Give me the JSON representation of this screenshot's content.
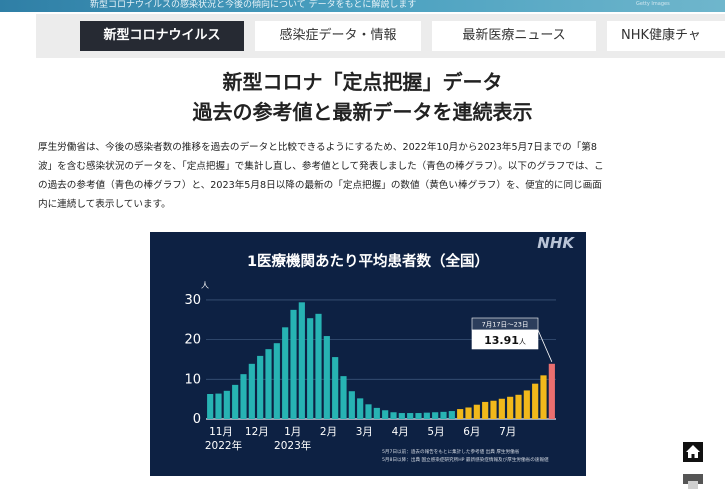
{
  "banner": {
    "text": "新型コロナウイルスの感染状況と今後の傾向について データをもとに解説します",
    "credit": "Getty Images"
  },
  "nav": {
    "tabs": [
      {
        "label": "新型コロナウイルス",
        "active": true
      },
      {
        "label": "感染症データ・情報",
        "active": false
      },
      {
        "label": "最新医療ニュース",
        "active": false
      },
      {
        "label": "NHK健康チャ",
        "active": false
      }
    ]
  },
  "article": {
    "title_line1": "新型コロナ「定点把握」データ",
    "title_line2": "過去の参考値と最新データを連続表示",
    "paragraph_lines": [
      "厚生労働省は、今後の感染者数の推移を過去のデータと比較できるようにするため、2022年10月から2023年5月7日までの「第8",
      "波」を含む感染状況のデータを、「定点把握」で集計し直し、参考値として発表しました（青色の棒グラフ）。以下のグラフでは、こ",
      "の過去の参考値（青色の棒グラフ）と、2023年5月8日以降の最新の「定点把握」の数値（黄色い棒グラフ）を、便宜的に同じ画面",
      "内に連続して表示しています。"
    ]
  },
  "chart_data": {
    "type": "bar",
    "title": "1医療機関あたり平均患者数（全国）",
    "brand": "NHK",
    "ylabel": "人",
    "ylim": [
      0,
      32
    ],
    "yticks": [
      0,
      10,
      20,
      30
    ],
    "x_tick_labels": [
      "11月",
      "12月",
      "1月",
      "2月",
      "3月",
      "4月",
      "5月",
      "6月",
      "7月"
    ],
    "year_labels": [
      "2022年",
      "2023年"
    ],
    "series": [
      {
        "color": "#27b3b3",
        "values": [
          6.3,
          6.4,
          7.1,
          8.6,
          11.3,
          13.9,
          15.9,
          17.6,
          19.1,
          23.1,
          27.5,
          29.4,
          25.4,
          26.5,
          20.9,
          15.6,
          10.8,
          7.0,
          5.2,
          3.7,
          2.8,
          2.2,
          1.7,
          1.5,
          1.5,
          1.5,
          1.6,
          1.7,
          1.8,
          2.0
        ]
      },
      {
        "color": "#f1b81b",
        "values": [
          2.5,
          2.9,
          3.6,
          4.3,
          4.6,
          5.1,
          5.6,
          6.1,
          7.2,
          8.9,
          11.0
        ]
      },
      {
        "color": "#ea6f6f",
        "values": [
          13.91
        ]
      }
    ],
    "annotation": {
      "date_range": "7月17日～23日",
      "value": "13.91",
      "unit": "人"
    },
    "footnotes": [
      "5月7日以前：過去の報告をもとに集計した参考値  出典 厚生労働省",
      "5月8日以降：出典 国立感染症研究所HP 最新感染症情報及び厚生労働省の速報値"
    ]
  },
  "side": {
    "home_icon": "home-icon",
    "second_icon": "bookmark-icon"
  }
}
